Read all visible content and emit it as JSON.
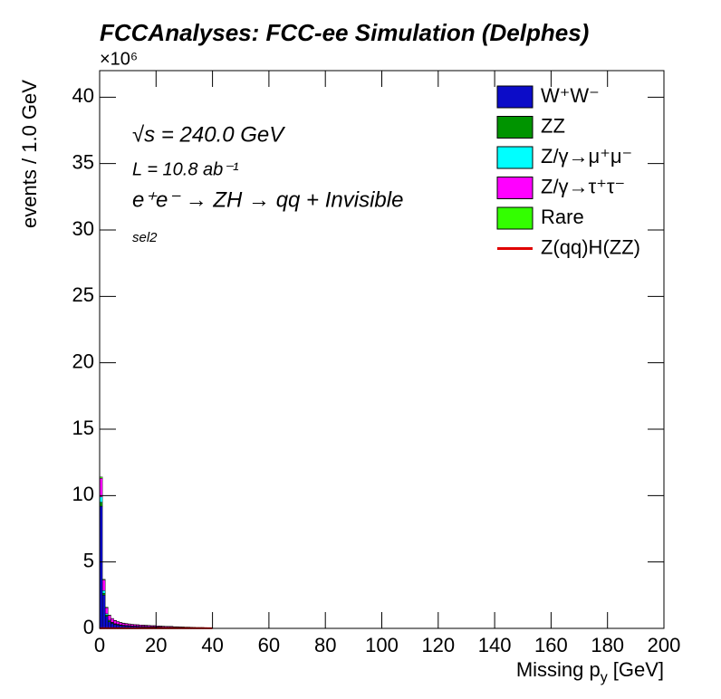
{
  "chart_data": {
    "type": "histogram",
    "title": "FCCAnalyses: FCC-ee Simulation (Delphes)",
    "multiplier": "×10⁶",
    "ylabel": "events / 1.0 GeV",
    "xlabel": {
      "text": "Missing p",
      "sub": "y",
      "unit": "[GeV]"
    },
    "annotations": [
      "√s = 240.0 GeV",
      "L = 10.8 ab⁻¹",
      "e⁺e⁻ → ZH → qq + Invisible",
      "sel2"
    ],
    "xlim": [
      0,
      200
    ],
    "ylim": [
      0,
      42
    ],
    "xticks": [
      0,
      20,
      40,
      60,
      80,
      100,
      120,
      140,
      160,
      180,
      200
    ],
    "yticks": [
      0,
      5,
      10,
      15,
      20,
      25,
      30,
      35,
      40
    ],
    "legend": "top-right",
    "bins": [
      0,
      1,
      2,
      3,
      4,
      5,
      6,
      7,
      8,
      9,
      10,
      11,
      12,
      13,
      14,
      15,
      16,
      17,
      18,
      19,
      20,
      21,
      22,
      23,
      24,
      25,
      26,
      27,
      28,
      29,
      30,
      31,
      32,
      33,
      34,
      35,
      36,
      37,
      38,
      39,
      40
    ],
    "series": [
      {
        "name": "W⁺W⁻",
        "color": "#0c0cc8",
        "values": [
          9.2,
          2.5,
          0.9,
          0.5,
          0.38,
          0.3,
          0.25,
          0.22,
          0.2,
          0.18,
          0.17,
          0.16,
          0.15,
          0.14,
          0.13,
          0.12,
          0.12,
          0.11,
          0.1,
          0.1,
          0.09,
          0.09,
          0.08,
          0.08,
          0.07,
          0.07,
          0.06,
          0.06,
          0.05,
          0.05,
          0.04,
          0.04,
          0.03,
          0.03,
          0.02,
          0.02,
          0.02,
          0.02,
          0.01,
          0.01
        ]
      },
      {
        "name": "ZZ",
        "color": "#009400",
        "values": [
          0.3,
          0.15,
          0.1,
          0.07,
          0.05,
          0.04,
          0.04,
          0.03,
          0.03,
          0.03,
          0.03,
          0.02,
          0.02,
          0.02,
          0.02,
          0.02,
          0.02,
          0.02,
          0.02,
          0.02,
          0.02,
          0.01,
          0.01,
          0.01,
          0.01,
          0.01,
          0.01,
          0.01,
          0.01,
          0.01,
          0.01,
          0.01,
          0.01,
          0.01,
          0.01,
          0.01,
          0.01,
          0.01,
          0.01,
          0.01
        ]
      },
      {
        "name": "Z/γ→μ⁺μ⁻",
        "color": "#00ffff",
        "values": [
          0.4,
          0.2,
          0.1,
          0.05,
          0.03,
          0.02,
          0.02,
          0.02,
          0.01,
          0.01,
          0.01,
          0.01,
          0.01,
          0.01,
          0.01,
          0.01,
          0.01,
          0.01,
          0.01,
          0.01,
          0.01,
          0.01,
          0.01,
          0.01,
          0.01,
          0.01,
          0.01,
          0.01,
          0.01,
          0.01,
          0.01,
          0.01,
          0.01,
          0.01,
          0.01,
          0.01,
          0.01,
          0.01,
          0.01,
          0.01
        ]
      },
      {
        "name": "Z/γ→τ⁺τ⁻",
        "color": "#ff00ff",
        "values": [
          1.4,
          0.8,
          0.45,
          0.35,
          0.27,
          0.22,
          0.18,
          0.16,
          0.14,
          0.13,
          0.12,
          0.11,
          0.1,
          0.1,
          0.09,
          0.09,
          0.08,
          0.08,
          0.07,
          0.07,
          0.06,
          0.06,
          0.06,
          0.05,
          0.05,
          0.05,
          0.04,
          0.04,
          0.04,
          0.03,
          0.03,
          0.03,
          0.03,
          0.02,
          0.02,
          0.02,
          0.02,
          0.01,
          0.01,
          0.01
        ]
      },
      {
        "name": "Rare",
        "color": "#33ff00",
        "values": [
          0.1,
          0.05,
          0.05,
          0.03,
          0.02,
          0.02,
          0.02,
          0.02,
          0.02,
          0.02,
          0.01,
          0.01,
          0.01,
          0.01,
          0.01,
          0.01,
          0.01,
          0.01,
          0.01,
          0.01,
          0.01,
          0.01,
          0.01,
          0.01,
          0.01,
          0.01,
          0.01,
          0.01,
          0.01,
          0.01,
          0.01,
          0.01,
          0.01,
          0.01,
          0.01,
          0.01,
          0.01,
          0.01,
          0.01,
          0.01
        ]
      },
      {
        "name": "Z(qq)H(ZZ)",
        "color": "#e00000",
        "line": true,
        "values": [
          0.01,
          0.01,
          0.01,
          0.01,
          0.01,
          0.01,
          0.01,
          0.01,
          0.01,
          0.01,
          0.01,
          0.01,
          0.01,
          0.01,
          0.01,
          0.01,
          0.01,
          0.01,
          0.01,
          0.01,
          0.01,
          0.01,
          0.01,
          0.01,
          0.01,
          0.01,
          0.01,
          0.01,
          0.01,
          0.01,
          0.01,
          0.01,
          0.01,
          0.01,
          0.01,
          0.01,
          0.01,
          0.01,
          0.01,
          0.01
        ]
      }
    ]
  }
}
